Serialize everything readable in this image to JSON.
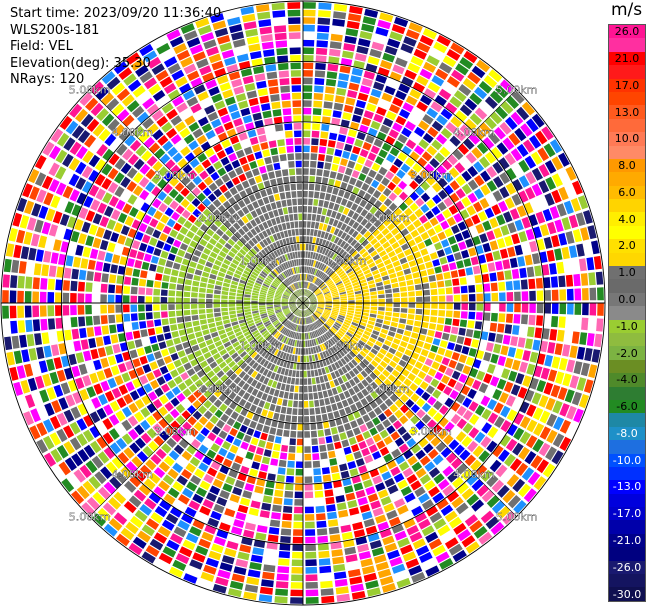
{
  "header": {
    "start_time": "Start time: 2023/09/20 11:36:40",
    "station": "WLS200s-181",
    "field": "Field: VEL",
    "elevation": "Elevation(deg): 35.30",
    "nrays": "NRays: 120"
  },
  "colorbar": {
    "unit": "m/s",
    "segments": [
      {
        "label": "26.0",
        "color": "#ff1493",
        "text": "#000000"
      },
      {
        "label": "",
        "color": "#ff2fa0",
        "text": "#000000"
      },
      {
        "label": "21.0",
        "color": "#ff0000",
        "text": "#000000"
      },
      {
        "label": "",
        "color": "#ff1a1a",
        "text": "#000000"
      },
      {
        "label": "17.0",
        "color": "#ff3300",
        "text": "#000000"
      },
      {
        "label": "",
        "color": "#ff4500",
        "text": "#000000"
      },
      {
        "label": "13.0",
        "color": "#ff5a1e",
        "text": "#000000"
      },
      {
        "label": "",
        "color": "#ff6a3a",
        "text": "#000000"
      },
      {
        "label": "10.0",
        "color": "#ff7a55",
        "text": "#000000"
      },
      {
        "label": "",
        "color": "#ff8a66",
        "text": "#000000"
      },
      {
        "label": "8.0",
        "color": "#ff9900",
        "text": "#000000"
      },
      {
        "label": "",
        "color": "#ffaa00",
        "text": "#000000"
      },
      {
        "label": "6.0",
        "color": "#ffbb00",
        "text": "#000000"
      },
      {
        "label": "",
        "color": "#ffd400",
        "text": "#000000"
      },
      {
        "label": "4.0",
        "color": "#ffee00",
        "text": "#000000"
      },
      {
        "label": "",
        "color": "#ffff00",
        "text": "#000000"
      },
      {
        "label": "2.0",
        "color": "#ffe000",
        "text": "#000000"
      },
      {
        "label": "",
        "color": "#ffd700",
        "text": "#000000"
      },
      {
        "label": "1.0",
        "color": "#707070",
        "text": "#000000"
      },
      {
        "label": "",
        "color": "#6a6a6a",
        "text": "#000000"
      },
      {
        "label": "0.0",
        "color": "#777777",
        "text": "#000000"
      },
      {
        "label": "",
        "color": "#8a8a8a",
        "text": "#000000"
      },
      {
        "label": "-1.0",
        "color": "#9acd32",
        "text": "#000000"
      },
      {
        "label": "",
        "color": "#8fbc3f",
        "text": "#000000"
      },
      {
        "label": "-2.0",
        "color": "#7cb342",
        "text": "#000000"
      },
      {
        "label": "",
        "color": "#6b8e23",
        "text": "#000000"
      },
      {
        "label": "-4.0",
        "color": "#4f8a2a",
        "text": "#000000"
      },
      {
        "label": "",
        "color": "#2e7d32",
        "text": "#000000"
      },
      {
        "label": "-6.0",
        "color": "#228b22",
        "text": "#000000"
      },
      {
        "label": "",
        "color": "#1e88a5",
        "text": "#000000"
      },
      {
        "label": "-8.0",
        "color": "#1e90c8",
        "text": "#ffffff"
      },
      {
        "label": "",
        "color": "#1e6fe0",
        "text": "#ffffff"
      },
      {
        "label": "-10.0",
        "color": "#0050ff",
        "text": "#ffffff"
      },
      {
        "label": "",
        "color": "#0030ff",
        "text": "#ffffff"
      },
      {
        "label": "-13.0",
        "color": "#0000ff",
        "text": "#ffffff"
      },
      {
        "label": "",
        "color": "#0000dd",
        "text": "#ffffff"
      },
      {
        "label": "-17.0",
        "color": "#0000cc",
        "text": "#ffffff"
      },
      {
        "label": "",
        "color": "#0000aa",
        "text": "#ffffff"
      },
      {
        "label": "-21.0",
        "color": "#00008b",
        "text": "#ffffff"
      },
      {
        "label": "",
        "color": "#000080",
        "text": "#ffffff"
      },
      {
        "label": "-26.0",
        "color": "#191970",
        "text": "#ffffff"
      },
      {
        "label": "",
        "color": "#141460",
        "text": "#ffffff"
      },
      {
        "label": "-30.0",
        "color": "#0f0f50",
        "text": "#ffffff"
      }
    ]
  },
  "chart_data": {
    "type": "heatmap",
    "field": "VEL",
    "units": "m/s",
    "nrays": 120,
    "rings": [
      {
        "range_km": 1.0,
        "label": "1.00km"
      },
      {
        "range_km": 2.0,
        "label": "2.00km"
      },
      {
        "range_km": 3.0,
        "label": "3.00km"
      },
      {
        "range_km": 4.0,
        "label": "4.00km"
      },
      {
        "range_km": 5.0,
        "label": "5.00km"
      }
    ],
    "max_range_km": 5.0,
    "grid": true,
    "velocity_pattern": {
      "core_max_km": 2.3,
      "noise_from_km": 2.5,
      "approach_sector_deg": [
        45,
        135
      ],
      "recede_sector_deg": [
        225,
        315
      ],
      "approach_color": "#ffd700",
      "recede_color": "#9acd32",
      "zero_color": "#707070",
      "noise_palette": [
        "#ff1493",
        "#ff0000",
        "#ff4500",
        "#ffd700",
        "#ffff00",
        "#9acd32",
        "#228b22",
        "#1e90ff",
        "#0000ff",
        "#00008b",
        "#191970",
        "#ff69b4",
        "#ffa500",
        "#707070",
        "#ff00ff",
        "#ffffff"
      ]
    }
  }
}
